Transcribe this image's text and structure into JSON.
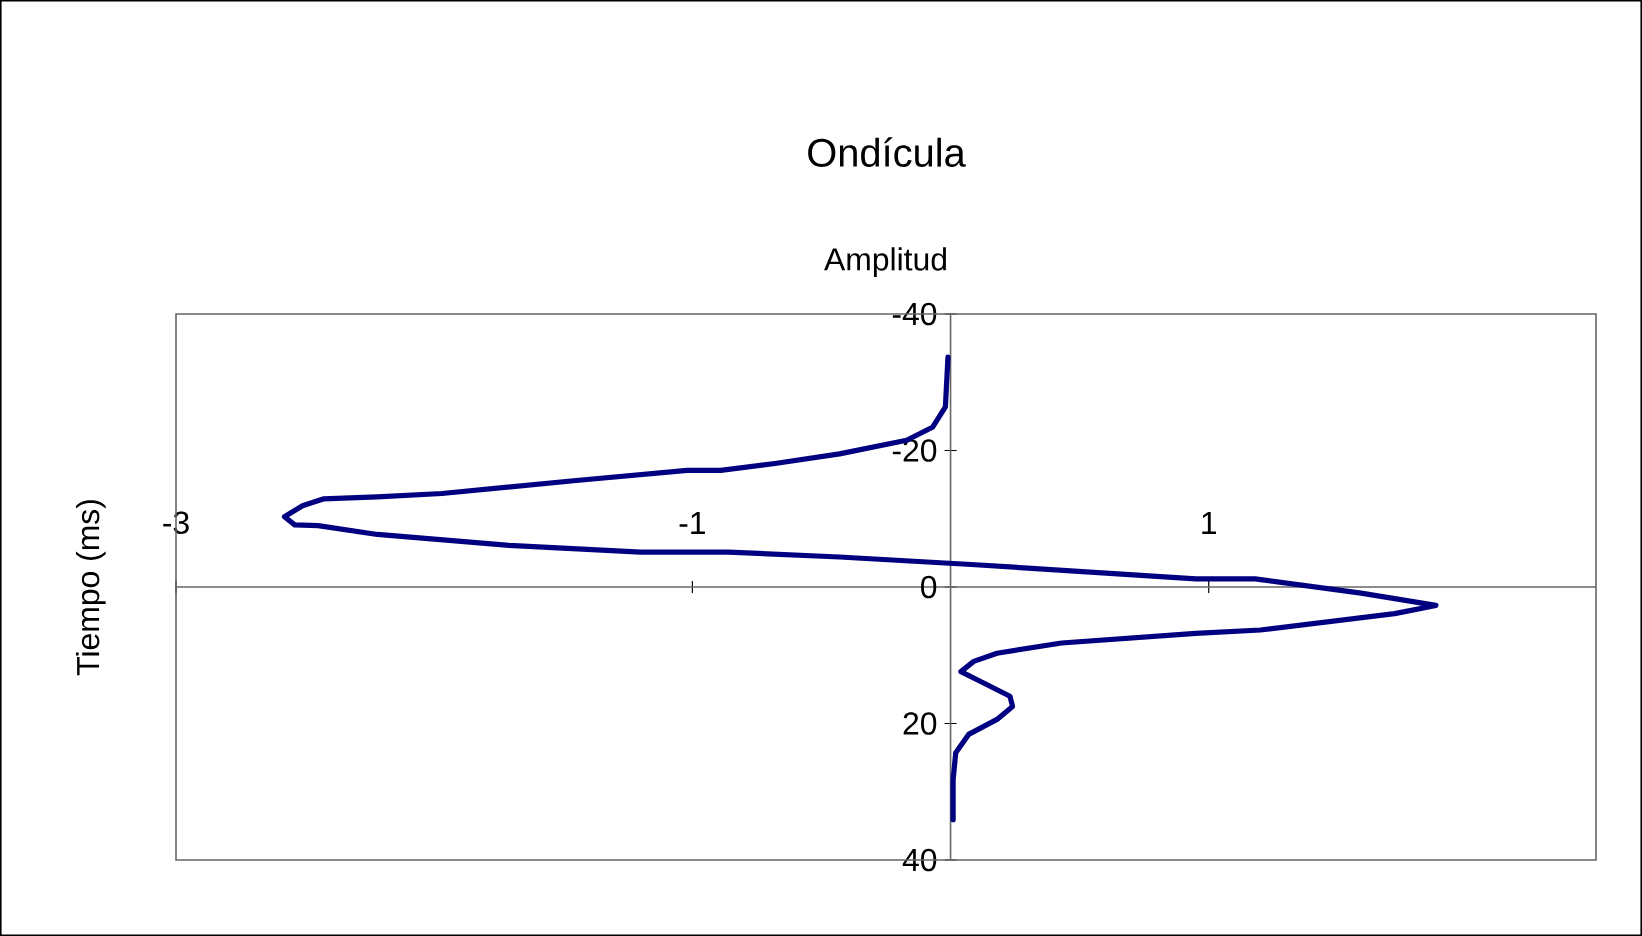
{
  "chart_data": {
    "type": "line",
    "title": "Ondícula",
    "xlabel": "Amplitud",
    "ylabel": "Tiempo (ms)",
    "xlim": [
      -3,
      2.5
    ],
    "xticks": [
      -3,
      -1,
      1
    ],
    "ylim": [
      40,
      -40
    ],
    "yticks": [
      -40,
      -20,
      0,
      20,
      40
    ],
    "grid": false,
    "legend": false,
    "marker": "none",
    "line_style": "solid",
    "series": [
      {
        "color": "#000080",
        "x": [
          -0.01,
          -0.02,
          -0.07,
          -0.17,
          -0.43,
          -0.68,
          -0.89,
          -1.02,
          -1.45,
          -1.97,
          -2.22,
          -2.43,
          -2.51,
          -2.58,
          -2.54,
          -2.45,
          -2.22,
          -1.71,
          -1.2,
          -0.86,
          -0.43,
          0.08,
          0.95,
          1.18,
          1.59,
          1.88,
          1.72,
          1.2,
          0.95,
          0.43,
          0.18,
          0.09,
          0.04,
          0.13,
          0.23,
          0.24,
          0.18,
          0.07,
          0.02,
          0.01,
          0.01
        ],
        "values": [
          -33.7,
          -26.4,
          -23.4,
          -21.5,
          -19.5,
          -18.1,
          -17.1,
          -17.1,
          -15.6,
          -13.7,
          -13.2,
          -12.9,
          -11.9,
          -10.3,
          -9.1,
          -9.0,
          -7.7,
          -6.1,
          -5.1,
          -5.1,
          -4.4,
          -3.3,
          -1.2,
          -1.2,
          0.9,
          2.7,
          3.9,
          6.3,
          6.8,
          8.2,
          9.7,
          10.9,
          12.4,
          14.1,
          16.0,
          17.5,
          19.4,
          21.6,
          24.3,
          28.2,
          34.1
        ]
      }
    ]
  }
}
